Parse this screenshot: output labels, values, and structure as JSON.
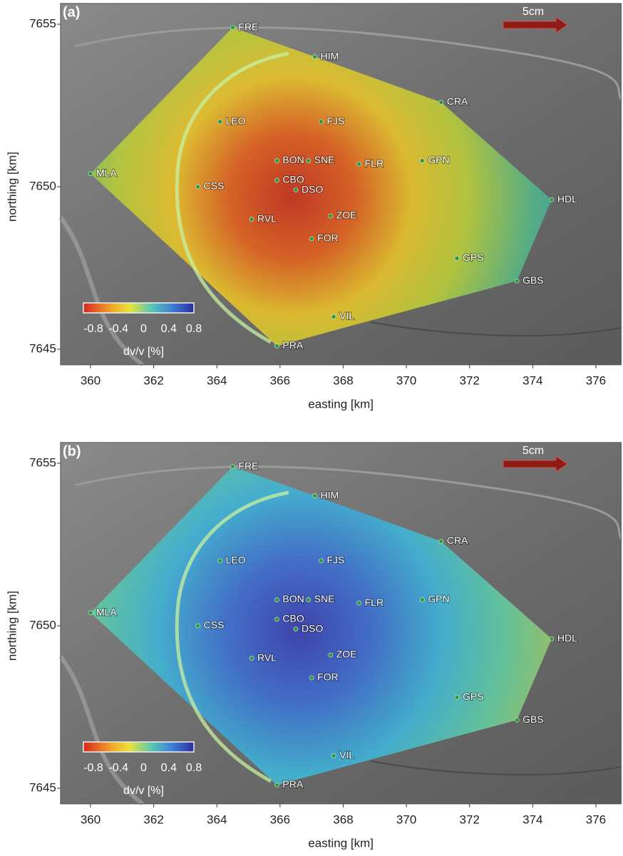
{
  "panels": [
    {
      "label": "(a)"
    },
    {
      "label": "(b)"
    }
  ],
  "scale_label": "5cm",
  "colorbar": {
    "ticks": [
      -0.8,
      -0.4,
      0,
      0.4,
      0.8
    ],
    "label": "dv/v [%]",
    "clim": [
      -0.8,
      0.8
    ]
  },
  "axes": {
    "xlabel": "easting [km]",
    "ylabel": "northing [km]",
    "xlim": [
      359.05,
      376.8
    ],
    "ylim": [
      7644.52,
      7655.64
    ],
    "xticks": [
      360,
      362,
      364,
      366,
      368,
      370,
      372,
      374,
      376
    ],
    "yticks": [
      7645,
      7650,
      7655
    ]
  },
  "stations": [
    {
      "name": "FRE",
      "x": 364.5,
      "y": 7654.9
    },
    {
      "name": "HIM",
      "x": 367.1,
      "y": 7654.0
    },
    {
      "name": "CRA",
      "x": 371.1,
      "y": 7652.6
    },
    {
      "name": "LEO",
      "x": 364.1,
      "y": 7652.0
    },
    {
      "name": "FJS",
      "x": 367.3,
      "y": 7652.0
    },
    {
      "name": "BON",
      "x": 365.9,
      "y": 7650.8
    },
    {
      "name": "SNE",
      "x": 366.9,
      "y": 7650.8
    },
    {
      "name": "GPN",
      "x": 370.5,
      "y": 7650.8
    },
    {
      "name": "FLR",
      "x": 368.5,
      "y": 7650.7
    },
    {
      "name": "MLA",
      "x": 360.0,
      "y": 7650.4
    },
    {
      "name": "CSS",
      "x": 363.4,
      "y": 7650.0
    },
    {
      "name": "CBO",
      "x": 365.9,
      "y": 7650.2
    },
    {
      "name": "DSO",
      "x": 366.5,
      "y": 7649.9
    },
    {
      "name": "HDL",
      "x": 374.6,
      "y": 7649.6
    },
    {
      "name": "ZOE",
      "x": 367.6,
      "y": 7649.1
    },
    {
      "name": "RVL",
      "x": 365.1,
      "y": 7649.0
    },
    {
      "name": "FOR",
      "x": 367.0,
      "y": 7648.4
    },
    {
      "name": "GPS",
      "x": 371.6,
      "y": 7647.8
    },
    {
      "name": "GBS",
      "x": 373.5,
      "y": 7647.1
    },
    {
      "name": "VIL",
      "x": 367.7,
      "y": 7646.0
    },
    {
      "name": "PRA",
      "x": 365.9,
      "y": 7645.1
    }
  ]
}
